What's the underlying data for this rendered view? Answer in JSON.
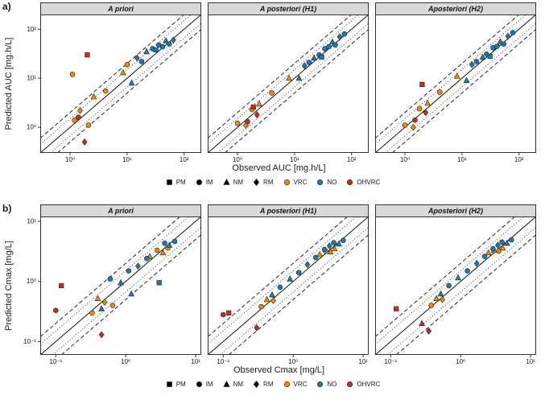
{
  "figure": {
    "row_a_label": "a)",
    "row_b_label": "b)",
    "background": "#ffffff",
    "strip_fill": "#D9D9D9",
    "border_color": "#333333"
  },
  "legend": {
    "shape_items": [
      {
        "label": "PM",
        "shape": "square"
      },
      {
        "label": "IM",
        "shape": "circle"
      },
      {
        "label": "NM",
        "shape": "triangle"
      },
      {
        "label": "RM",
        "shape": "diamond"
      }
    ],
    "color_items": [
      {
        "label": "VRC",
        "color": "#F08A00"
      },
      {
        "label": "NO",
        "color": "#1F78B4"
      },
      {
        "label": "OHVRC",
        "color": "#CC2B1C"
      }
    ],
    "color_map": {
      "VRC": "#F08A00",
      "NO": "#1F78B4",
      "OHVRC": "#CC2B1C"
    },
    "shape_color": "#000000"
  },
  "reference_lines": {
    "identity_factor": 1,
    "dashed_factors": [
      2,
      0.5
    ],
    "dotted_factors": [
      1.5,
      0.6667
    ]
  },
  "chart_data": [
    {
      "type": "scatter",
      "row": "a",
      "xlabel": "Observed AUC [mg.h/L]",
      "ylabel": "Predicted AUC [mg.h/L]",
      "log_scale": true,
      "xlim": [
        0.3,
        200
      ],
      "ylim": [
        0.3,
        200
      ],
      "ticks": [
        {
          "v": 1,
          "label": "10⁰"
        },
        {
          "v": 10,
          "label": "10¹"
        },
        {
          "v": 100,
          "label": "10²"
        }
      ],
      "panels": [
        {
          "title": "A priori",
          "points": [
            {
              "x": 1.1,
              "y": 12,
              "s": "circle",
              "g": "VRC"
            },
            {
              "x": 1.2,
              "y": 1.4,
              "s": "circle",
              "g": "VRC"
            },
            {
              "x": 1.5,
              "y": 2.2,
              "s": "diamond",
              "g": "VRC"
            },
            {
              "x": 2.1,
              "y": 1.1,
              "s": "circle",
              "g": "VRC"
            },
            {
              "x": 2.6,
              "y": 4.2,
              "s": "triangle",
              "g": "VRC"
            },
            {
              "x": 4.2,
              "y": 5.5,
              "s": "circle",
              "g": "VRC"
            },
            {
              "x": 8.5,
              "y": 13,
              "s": "triangle",
              "g": "VRC"
            },
            {
              "x": 10,
              "y": 19,
              "s": "circle",
              "g": "VRC"
            },
            {
              "x": 2.0,
              "y": 30,
              "s": "square",
              "g": "OHVRC"
            },
            {
              "x": 1.4,
              "y": 1.6,
              "s": "circle",
              "g": "OHVRC"
            },
            {
              "x": 1.8,
              "y": 0.5,
              "s": "diamond",
              "g": "OHVRC"
            },
            {
              "x": 12,
              "y": 8,
              "s": "triangle",
              "g": "NO"
            },
            {
              "x": 15,
              "y": 26,
              "s": "diamond",
              "g": "NO"
            },
            {
              "x": 18,
              "y": 22,
              "s": "circle",
              "g": "NO"
            },
            {
              "x": 22,
              "y": 35,
              "s": "triangle",
              "g": "NO"
            },
            {
              "x": 28,
              "y": 40,
              "s": "circle",
              "g": "NO"
            },
            {
              "x": 32,
              "y": 38,
              "s": "square",
              "g": "NO"
            },
            {
              "x": 36,
              "y": 48,
              "s": "circle",
              "g": "NO"
            },
            {
              "x": 42,
              "y": 44,
              "s": "circle",
              "g": "NO"
            },
            {
              "x": 48,
              "y": 58,
              "s": "triangle",
              "g": "NO"
            },
            {
              "x": 55,
              "y": 50,
              "s": "circle",
              "g": "NO"
            },
            {
              "x": 65,
              "y": 60,
              "s": "diamond",
              "g": "NO"
            }
          ]
        },
        {
          "title": "A posteriori (H1)",
          "points": [
            {
              "x": 1.0,
              "y": 1.2,
              "s": "circle",
              "g": "VRC"
            },
            {
              "x": 1.4,
              "y": 1.1,
              "s": "diamond",
              "g": "VRC"
            },
            {
              "x": 1.8,
              "y": 2.3,
              "s": "circle",
              "g": "VRC"
            },
            {
              "x": 2.4,
              "y": 3.0,
              "s": "triangle",
              "g": "VRC"
            },
            {
              "x": 4.0,
              "y": 5.0,
              "s": "circle",
              "g": "VRC"
            },
            {
              "x": 8.0,
              "y": 10,
              "s": "triangle",
              "g": "VRC"
            },
            {
              "x": 1.9,
              "y": 2.6,
              "s": "square",
              "g": "OHVRC"
            },
            {
              "x": 1.5,
              "y": 1.3,
              "s": "circle",
              "g": "OHVRC"
            },
            {
              "x": 2.2,
              "y": 1.8,
              "s": "diamond",
              "g": "OHVRC"
            },
            {
              "x": 12,
              "y": 10,
              "s": "triangle",
              "g": "NO"
            },
            {
              "x": 15,
              "y": 18,
              "s": "diamond",
              "g": "NO"
            },
            {
              "x": 18,
              "y": 21,
              "s": "circle",
              "g": "NO"
            },
            {
              "x": 22,
              "y": 26,
              "s": "triangle",
              "g": "NO"
            },
            {
              "x": 27,
              "y": 30,
              "s": "circle",
              "g": "NO"
            },
            {
              "x": 30,
              "y": 27,
              "s": "square",
              "g": "NO"
            },
            {
              "x": 34,
              "y": 40,
              "s": "circle",
              "g": "NO"
            },
            {
              "x": 40,
              "y": 44,
              "s": "circle",
              "g": "NO"
            },
            {
              "x": 46,
              "y": 55,
              "s": "triangle",
              "g": "NO"
            },
            {
              "x": 52,
              "y": 48,
              "s": "circle",
              "g": "NO"
            },
            {
              "x": 62,
              "y": 70,
              "s": "diamond",
              "g": "NO"
            },
            {
              "x": 75,
              "y": 80,
              "s": "circle",
              "g": "NO"
            }
          ]
        },
        {
          "title": "Aposteriori (H2)",
          "points": [
            {
              "x": 1.0,
              "y": 1.1,
              "s": "circle",
              "g": "VRC"
            },
            {
              "x": 1.4,
              "y": 1.0,
              "s": "diamond",
              "g": "VRC"
            },
            {
              "x": 1.8,
              "y": 2.4,
              "s": "circle",
              "g": "VRC"
            },
            {
              "x": 2.5,
              "y": 3.1,
              "s": "triangle",
              "g": "VRC"
            },
            {
              "x": 4.1,
              "y": 5.2,
              "s": "circle",
              "g": "VRC"
            },
            {
              "x": 8.2,
              "y": 11,
              "s": "triangle",
              "g": "VRC"
            },
            {
              "x": 2.0,
              "y": 7.5,
              "s": "square",
              "g": "OHVRC"
            },
            {
              "x": 1.5,
              "y": 1.4,
              "s": "circle",
              "g": "OHVRC"
            },
            {
              "x": 2.3,
              "y": 2.0,
              "s": "diamond",
              "g": "OHVRC"
            },
            {
              "x": 12,
              "y": 9,
              "s": "triangle",
              "g": "NO"
            },
            {
              "x": 15,
              "y": 19,
              "s": "diamond",
              "g": "NO"
            },
            {
              "x": 18,
              "y": 22,
              "s": "circle",
              "g": "NO"
            },
            {
              "x": 23,
              "y": 27,
              "s": "triangle",
              "g": "NO"
            },
            {
              "x": 27,
              "y": 31,
              "s": "circle",
              "g": "NO"
            },
            {
              "x": 31,
              "y": 28,
              "s": "square",
              "g": "NO"
            },
            {
              "x": 35,
              "y": 42,
              "s": "circle",
              "g": "NO"
            },
            {
              "x": 41,
              "y": 45,
              "s": "circle",
              "g": "NO"
            },
            {
              "x": 47,
              "y": 56,
              "s": "triangle",
              "g": "NO"
            },
            {
              "x": 54,
              "y": 50,
              "s": "circle",
              "g": "NO"
            },
            {
              "x": 64,
              "y": 72,
              "s": "diamond",
              "g": "NO"
            },
            {
              "x": 78,
              "y": 85,
              "s": "circle",
              "g": "NO"
            }
          ]
        }
      ]
    },
    {
      "type": "scatter",
      "row": "b",
      "xlabel": "Observed Cmax [mg/L]",
      "ylabel": "Predicted Cmax [mg/L]",
      "log_scale": true,
      "xlim": [
        0.06,
        12
      ],
      "ylim": [
        0.06,
        12
      ],
      "ticks": [
        {
          "v": 0.1,
          "label": "10⁻¹"
        },
        {
          "v": 1,
          "label": "10⁰"
        },
        {
          "v": 10,
          "label": "10¹"
        }
      ],
      "panels": [
        {
          "title": "A priori",
          "points": [
            {
              "x": 0.12,
              "y": 0.85,
              "s": "square",
              "g": "OHVRC"
            },
            {
              "x": 0.1,
              "y": 0.33,
              "s": "circle",
              "g": "OHVRC"
            },
            {
              "x": 0.45,
              "y": 0.13,
              "s": "diamond",
              "g": "OHVRC"
            },
            {
              "x": 0.33,
              "y": 0.3,
              "s": "circle",
              "g": "VRC"
            },
            {
              "x": 0.4,
              "y": 0.52,
              "s": "triangle",
              "g": "VRC"
            },
            {
              "x": 0.5,
              "y": 0.45,
              "s": "diamond",
              "g": "VRC"
            },
            {
              "x": 0.65,
              "y": 0.4,
              "s": "circle",
              "g": "VRC"
            },
            {
              "x": 2.2,
              "y": 2.6,
              "s": "triangle",
              "g": "VRC"
            },
            {
              "x": 2.8,
              "y": 3.3,
              "s": "circle",
              "g": "VRC"
            },
            {
              "x": 3.4,
              "y": 3.0,
              "s": "triangle",
              "g": "VRC"
            },
            {
              "x": 4.0,
              "y": 3.6,
              "s": "circle",
              "g": "VRC"
            },
            {
              "x": 0.45,
              "y": 0.35,
              "s": "triangle",
              "g": "NO"
            },
            {
              "x": 0.6,
              "y": 1.1,
              "s": "circle",
              "g": "NO"
            },
            {
              "x": 0.85,
              "y": 0.95,
              "s": "triangle",
              "g": "NO"
            },
            {
              "x": 1.1,
              "y": 1.5,
              "s": "circle",
              "g": "NO"
            },
            {
              "x": 1.5,
              "y": 1.8,
              "s": "diamond",
              "g": "NO"
            },
            {
              "x": 2.0,
              "y": 2.4,
              "s": "circle",
              "g": "NO"
            },
            {
              "x": 3.0,
              "y": 0.95,
              "s": "square",
              "g": "NO"
            },
            {
              "x": 3.6,
              "y": 4.3,
              "s": "circle",
              "g": "NO"
            },
            {
              "x": 4.2,
              "y": 4.0,
              "s": "triangle",
              "g": "NO"
            },
            {
              "x": 5.0,
              "y": 4.6,
              "s": "circle",
              "g": "NO"
            },
            {
              "x": 1.2,
              "y": 0.62,
              "s": "triangle",
              "g": "NO"
            }
          ]
        },
        {
          "title": "A posteriori (H1)",
          "points": [
            {
              "x": 0.12,
              "y": 0.3,
              "s": "square",
              "g": "OHVRC"
            },
            {
              "x": 0.1,
              "y": 0.28,
              "s": "circle",
              "g": "OHVRC"
            },
            {
              "x": 0.3,
              "y": 0.17,
              "s": "diamond",
              "g": "OHVRC"
            },
            {
              "x": 0.35,
              "y": 0.38,
              "s": "circle",
              "g": "VRC"
            },
            {
              "x": 0.42,
              "y": 0.5,
              "s": "triangle",
              "g": "VRC"
            },
            {
              "x": 0.52,
              "y": 0.48,
              "s": "diamond",
              "g": "VRC"
            },
            {
              "x": 2.4,
              "y": 2.8,
              "s": "triangle",
              "g": "VRC"
            },
            {
              "x": 2.9,
              "y": 3.2,
              "s": "circle",
              "g": "VRC"
            },
            {
              "x": 3.4,
              "y": 3.1,
              "s": "triangle",
              "g": "VRC"
            },
            {
              "x": 3.9,
              "y": 3.5,
              "s": "triangle",
              "g": "VRC"
            },
            {
              "x": 0.5,
              "y": 0.6,
              "s": "triangle",
              "g": "NO"
            },
            {
              "x": 0.65,
              "y": 0.8,
              "s": "circle",
              "g": "NO"
            },
            {
              "x": 0.9,
              "y": 1.1,
              "s": "triangle",
              "g": "NO"
            },
            {
              "x": 1.2,
              "y": 1.4,
              "s": "circle",
              "g": "NO"
            },
            {
              "x": 1.6,
              "y": 1.9,
              "s": "diamond",
              "g": "NO"
            },
            {
              "x": 2.1,
              "y": 2.5,
              "s": "circle",
              "g": "NO"
            },
            {
              "x": 2.8,
              "y": 3.4,
              "s": "circle",
              "g": "NO"
            },
            {
              "x": 3.3,
              "y": 3.9,
              "s": "diamond",
              "g": "NO"
            },
            {
              "x": 3.8,
              "y": 4.4,
              "s": "circle",
              "g": "NO"
            },
            {
              "x": 4.5,
              "y": 4.2,
              "s": "triangle",
              "g": "NO"
            },
            {
              "x": 5.2,
              "y": 4.8,
              "s": "circle",
              "g": "NO"
            }
          ]
        },
        {
          "title": "Aposteriori (H2)",
          "points": [
            {
              "x": 0.12,
              "y": 0.35,
              "s": "square",
              "g": "OHVRC"
            },
            {
              "x": 0.28,
              "y": 0.2,
              "s": "triangle",
              "g": "OHVRC"
            },
            {
              "x": 0.35,
              "y": 0.15,
              "s": "diamond",
              "g": "OHVRC"
            },
            {
              "x": 0.38,
              "y": 0.4,
              "s": "circle",
              "g": "VRC"
            },
            {
              "x": 0.45,
              "y": 0.52,
              "s": "triangle",
              "g": "VRC"
            },
            {
              "x": 0.55,
              "y": 0.5,
              "s": "diamond",
              "g": "VRC"
            },
            {
              "x": 2.5,
              "y": 3.0,
              "s": "triangle",
              "g": "VRC"
            },
            {
              "x": 3.0,
              "y": 3.3,
              "s": "triangle",
              "g": "VRC"
            },
            {
              "x": 3.5,
              "y": 3.2,
              "s": "circle",
              "g": "VRC"
            },
            {
              "x": 4.0,
              "y": 3.6,
              "s": "triangle",
              "g": "VRC"
            },
            {
              "x": 0.52,
              "y": 0.62,
              "s": "triangle",
              "g": "NO"
            },
            {
              "x": 0.68,
              "y": 0.85,
              "s": "circle",
              "g": "NO"
            },
            {
              "x": 0.92,
              "y": 1.15,
              "s": "triangle",
              "g": "NO"
            },
            {
              "x": 1.25,
              "y": 1.5,
              "s": "circle",
              "g": "NO"
            },
            {
              "x": 1.7,
              "y": 2.0,
              "s": "diamond",
              "g": "NO"
            },
            {
              "x": 2.2,
              "y": 2.6,
              "s": "circle",
              "g": "NO"
            },
            {
              "x": 2.9,
              "y": 3.5,
              "s": "circle",
              "g": "NO"
            },
            {
              "x": 3.4,
              "y": 4.0,
              "s": "diamond",
              "g": "NO"
            },
            {
              "x": 3.9,
              "y": 4.5,
              "s": "circle",
              "g": "NO"
            },
            {
              "x": 4.6,
              "y": 4.3,
              "s": "triangle",
              "g": "NO"
            },
            {
              "x": 5.3,
              "y": 4.9,
              "s": "circle",
              "g": "NO"
            }
          ]
        }
      ]
    }
  ]
}
